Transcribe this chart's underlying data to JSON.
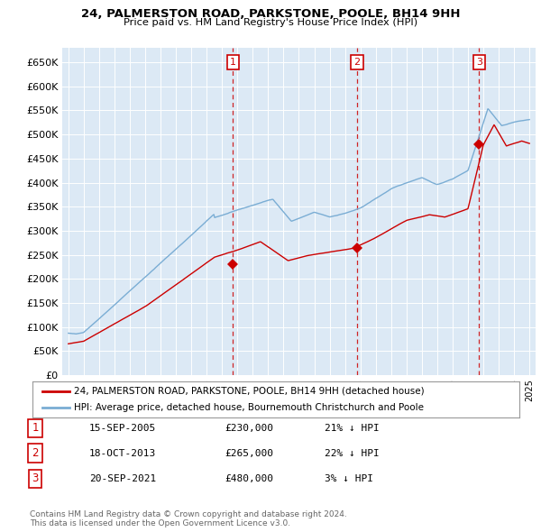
{
  "title": "24, PALMERSTON ROAD, PARKSTONE, POOLE, BH14 9HH",
  "subtitle": "Price paid vs. HM Land Registry's House Price Index (HPI)",
  "ylabel_ticks": [
    "£0",
    "£50K",
    "£100K",
    "£150K",
    "£200K",
    "£250K",
    "£300K",
    "£350K",
    "£400K",
    "£450K",
    "£500K",
    "£550K",
    "£600K",
    "£650K"
  ],
  "ytick_values": [
    0,
    50000,
    100000,
    150000,
    200000,
    250000,
    300000,
    350000,
    400000,
    450000,
    500000,
    550000,
    600000,
    650000
  ],
  "x_start_year": 1995,
  "x_end_year": 2025,
  "background_color": "#dce9f5",
  "grid_color": "#ffffff",
  "sale_dates": [
    2005.71,
    2013.79,
    2021.72
  ],
  "sale_prices": [
    230000,
    265000,
    480000
  ],
  "sale_labels": [
    "1",
    "2",
    "3"
  ],
  "sale_color": "#cc0000",
  "hpi_color": "#7aadd4",
  "legend_entries": [
    "24, PALMERSTON ROAD, PARKSTONE, POOLE, BH14 9HH (detached house)",
    "HPI: Average price, detached house, Bournemouth Christchurch and Poole"
  ],
  "table_data": [
    [
      "1",
      "15-SEP-2005",
      "£230,000",
      "21% ↓ HPI"
    ],
    [
      "2",
      "18-OCT-2013",
      "£265,000",
      "22% ↓ HPI"
    ],
    [
      "3",
      "20-SEP-2021",
      "£480,000",
      "3% ↓ HPI"
    ]
  ],
  "footnote": "Contains HM Land Registry data © Crown copyright and database right 2024.\nThis data is licensed under the Open Government Licence v3.0.",
  "vline_color": "#cc0000"
}
